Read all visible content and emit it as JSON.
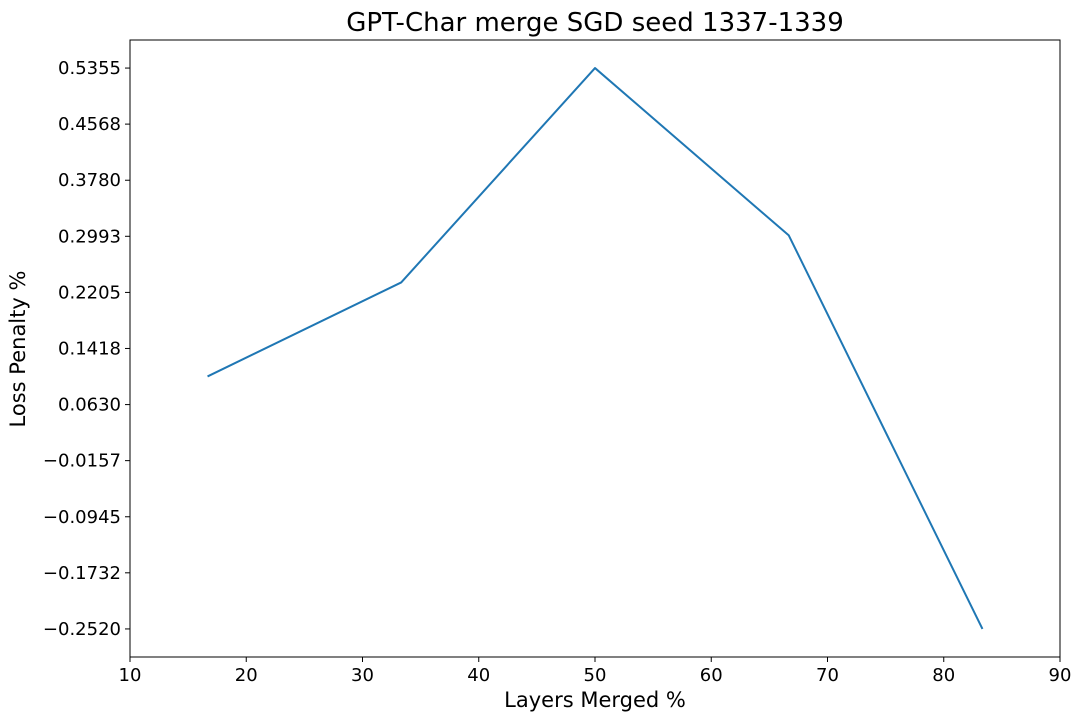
{
  "chart_data": {
    "type": "line",
    "title": "GPT-Char merge SGD seed 1337-1339",
    "xlabel": "Layers Merged %",
    "ylabel": "Loss Penalty %",
    "xlim": [
      10,
      90
    ],
    "ylim": [
      -0.2914,
      0.5749
    ],
    "x_ticks": [
      10,
      20,
      30,
      40,
      50,
      60,
      70,
      80,
      90
    ],
    "x_tick_labels": [
      "10",
      "20",
      "30",
      "40",
      "50",
      "60",
      "70",
      "80",
      "90"
    ],
    "y_ticks": [
      -0.252,
      -0.1732,
      -0.0945,
      -0.0157,
      0.063,
      0.1418,
      0.2205,
      0.2993,
      0.378,
      0.4568,
      0.5355
    ],
    "y_tick_labels": [
      "−0.2520",
      "−0.1732",
      "−0.0945",
      "−0.0157",
      "0.0630",
      "0.1418",
      "0.2205",
      "0.2993",
      "0.3780",
      "0.4568",
      "0.5355"
    ],
    "grid": false,
    "line_color": "#1f77b4",
    "x": [
      16.67,
      33.33,
      50.0,
      66.67,
      83.33
    ],
    "series": [
      {
        "values": [
          0.1025,
          0.2345,
          0.5355,
          0.3005,
          -0.252
        ]
      }
    ]
  }
}
